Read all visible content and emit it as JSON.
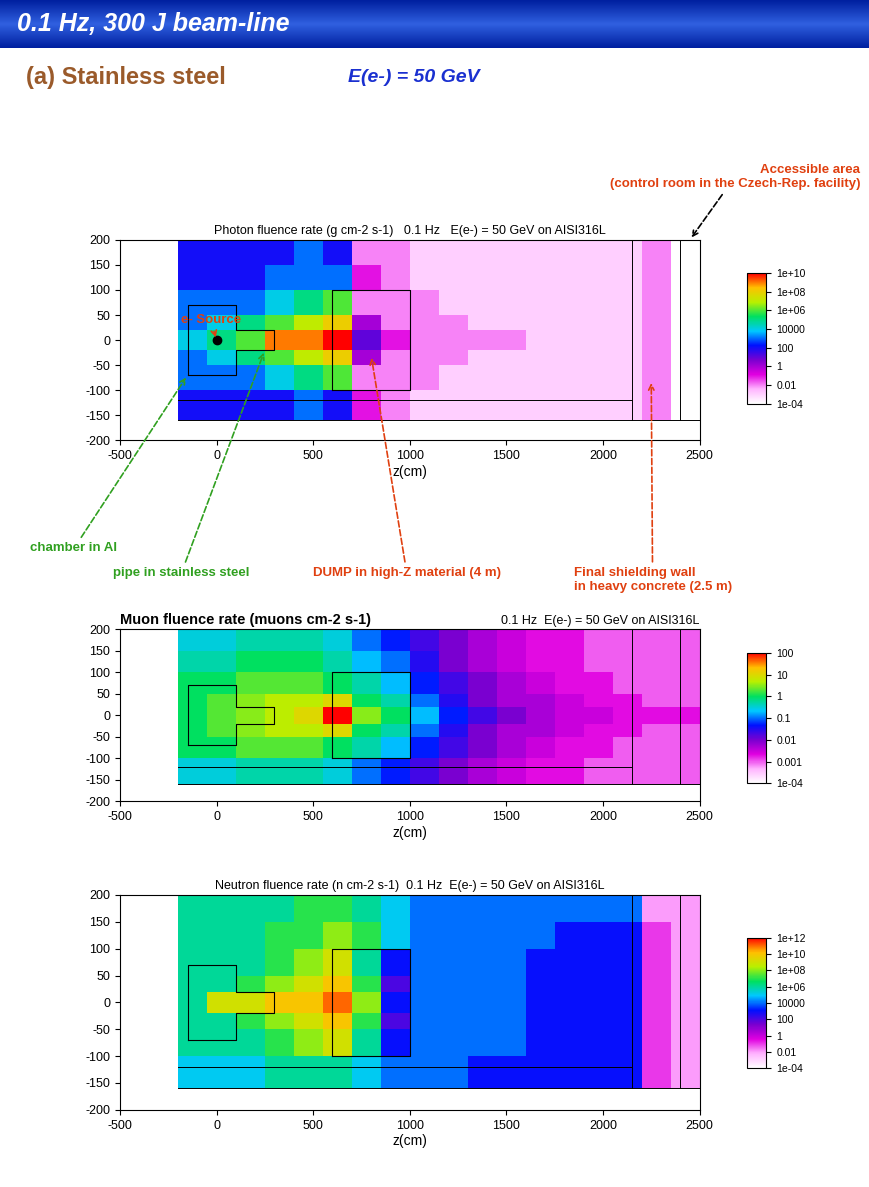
{
  "slide": {
    "title": "0.1 Hz, 300 J beam-line",
    "section": "(a) Stainless steel",
    "energy": "E(e-) = 50 GeV"
  },
  "chart_data": [
    {
      "type": "heatmap",
      "title": "Photon fluence rate (g cm-2 s-1)   0.1 Hz   E(e-) = 50 GeV on AISI316L",
      "xlabel": "z(cm)",
      "xlim": [
        -500,
        2500
      ],
      "ylim": [
        -200,
        200
      ],
      "xticks": [
        -500,
        0,
        500,
        1000,
        1500,
        2000,
        2500
      ],
      "yticks": [
        -200,
        -150,
        -100,
        -50,
        0,
        50,
        100,
        150,
        200
      ],
      "annotations": [
        "e- Source",
        "chamber in Al",
        "pipe in stainless steel",
        "DUMP in high-Z material (4 m)",
        "Final shielding wall\nin heavy concrete (2.5 m)",
        "Accessible area\n(control room in the Czech-Rep. facility)"
      ],
      "x_edges": [
        -200,
        -50,
        100,
        250,
        400,
        550,
        700,
        850,
        1000,
        1150,
        1300,
        1450,
        1600,
        1750,
        1900,
        2050,
        2200,
        2350,
        2500
      ],
      "y_edges": [
        -160,
        -100,
        -50,
        -20,
        20,
        50,
        100,
        150,
        200
      ],
      "cells": [
        [
          100,
          100,
          100,
          100,
          1000,
          100,
          0.1,
          0.01,
          0.001,
          0.001,
          0.001,
          0.001,
          0.001,
          0.001,
          0.001,
          0.001,
          0.01,
          0.0001
        ],
        [
          1000,
          1000,
          1000,
          10000.0,
          100000.0,
          1000000.0,
          0.01,
          0.01,
          0.01,
          0.001,
          0.001,
          0.001,
          0.001,
          0.001,
          0.001,
          0.001,
          0.01,
          0.0001
        ],
        [
          1000,
          10000.0,
          100000.0,
          1000000.0,
          10000000.0,
          100000000.0,
          1,
          0.01,
          0.01,
          0.01,
          0.001,
          0.001,
          0.001,
          0.001,
          0.001,
          0.001,
          0.01,
          0.0001
        ],
        [
          10000.0,
          100000.0,
          1000000.0,
          1000000000.0,
          1000000000.0,
          10000000000.0,
          10,
          0.1,
          0.01,
          0.01,
          0.01,
          0.01,
          0.001,
          0.001,
          0.001,
          0.001,
          0.01,
          0.0001
        ],
        [
          1000,
          10000.0,
          100000.0,
          1000000.0,
          10000000.0,
          100000000.0,
          1,
          0.01,
          0.01,
          0.01,
          0.001,
          0.001,
          0.001,
          0.001,
          0.001,
          0.001,
          0.01,
          0.0001
        ],
        [
          1000,
          1000,
          1000,
          10000.0,
          100000.0,
          1000000.0,
          0.01,
          0.01,
          0.01,
          0.001,
          0.001,
          0.001,
          0.001,
          0.001,
          0.001,
          0.001,
          0.01,
          0.0001
        ],
        [
          100,
          100,
          100,
          1000,
          1000,
          1000,
          0.1,
          0.01,
          0.001,
          0.001,
          0.001,
          0.001,
          0.001,
          0.001,
          0.001,
          0.001,
          0.01,
          0.0001
        ],
        [
          100,
          100,
          100,
          100,
          1000,
          100,
          0.01,
          0.01,
          0.001,
          0.001,
          0.001,
          0.001,
          0.001,
          0.001,
          0.001,
          0.001,
          0.01,
          0.0001
        ]
      ],
      "colorbar_range": [
        0.0001,
        10000000000.0
      ],
      "colorbar_ticks": [
        {
          "value": 10000000000.0,
          "label": "1e+10"
        },
        {
          "value": 100000000.0,
          "label": "1e+08"
        },
        {
          "value": 1000000.0,
          "label": "1e+06"
        },
        10000,
        100,
        1,
        0.01,
        {
          "value": 0.0001,
          "label": "1e-04"
        }
      ]
    },
    {
      "type": "heatmap",
      "title": "Muon fluence rate (muons cm-2 s-1)",
      "subtitle": "0.1 Hz  E(e-) = 50 GeV on AISI316L",
      "xlabel": "z(cm)",
      "xlim": [
        -500,
        2500
      ],
      "ylim": [
        -200,
        200
      ],
      "xticks": [
        -500,
        0,
        500,
        1000,
        1500,
        2000,
        2500
      ],
      "yticks": [
        -200,
        -150,
        -100,
        -50,
        0,
        50,
        100,
        150,
        200
      ],
      "x_edges": [
        -200,
        -50,
        100,
        250,
        400,
        550,
        700,
        850,
        1000,
        1150,
        1300,
        1450,
        1600,
        1750,
        1900,
        2050,
        2200,
        2350,
        2500
      ],
      "y_edges": [
        -160,
        -100,
        -50,
        -20,
        20,
        50,
        100,
        150,
        200
      ],
      "cells": [
        [
          0.3,
          0.3,
          0.5,
          0.5,
          0.5,
          0.3,
          0.1,
          0.05,
          0.02,
          0.01,
          0.005,
          0.003,
          0.002,
          0.002,
          0.001,
          0.001,
          0.001,
          0.001
        ],
        [
          1,
          1,
          2,
          2,
          2,
          1,
          0.5,
          0.2,
          0.05,
          0.02,
          0.01,
          0.005,
          0.003,
          0.002,
          0.002,
          0.001,
          0.001,
          0.001
        ],
        [
          1,
          2,
          3,
          5,
          5,
          10,
          1,
          0.5,
          0.1,
          0.03,
          0.01,
          0.005,
          0.005,
          0.003,
          0.002,
          0.002,
          0.001,
          0.001
        ],
        [
          1,
          2,
          3,
          5,
          10,
          100,
          3,
          1,
          0.2,
          0.05,
          0.02,
          0.01,
          0.005,
          0.003,
          0.003,
          0.002,
          0.002,
          0.002
        ],
        [
          1,
          2,
          3,
          5,
          5,
          10,
          1,
          0.5,
          0.1,
          0.03,
          0.01,
          0.005,
          0.005,
          0.003,
          0.002,
          0.002,
          0.001,
          0.001
        ],
        [
          1,
          1,
          2,
          2,
          2,
          1,
          0.5,
          0.2,
          0.05,
          0.02,
          0.01,
          0.005,
          0.003,
          0.002,
          0.002,
          0.001,
          0.001,
          0.001
        ],
        [
          0.5,
          0.5,
          1,
          1,
          1,
          0.5,
          0.2,
          0.1,
          0.03,
          0.01,
          0.005,
          0.003,
          0.002,
          0.002,
          0.001,
          0.001,
          0.001,
          0.001
        ],
        [
          0.3,
          0.3,
          0.5,
          0.5,
          0.5,
          0.3,
          0.1,
          0.05,
          0.02,
          0.01,
          0.005,
          0.003,
          0.002,
          0.002,
          0.001,
          0.001,
          0.001,
          0.001
        ]
      ],
      "colorbar_range": [
        0.0001,
        100
      ],
      "colorbar_ticks": [
        100,
        10,
        1,
        0.1,
        0.01,
        0.001,
        {
          "value": 0.0001,
          "label": "1e-04"
        }
      ]
    },
    {
      "type": "heatmap",
      "title": "Neutron fluence rate (n cm-2 s-1)  0.1 Hz  E(e-) = 50 GeV on AISI316L",
      "xlabel": "z(cm)",
      "xlim": [
        -500,
        2500
      ],
      "ylim": [
        -200,
        200
      ],
      "xticks": [
        -500,
        0,
        500,
        1000,
        1500,
        2000,
        2500
      ],
      "yticks": [
        -200,
        -150,
        -100,
        -50,
        0,
        50,
        100,
        150,
        200
      ],
      "x_edges": [
        -200,
        -50,
        100,
        250,
        400,
        550,
        700,
        850,
        1000,
        1150,
        1300,
        1450,
        1600,
        1750,
        1900,
        2050,
        2200,
        2350,
        2500
      ],
      "y_edges": [
        -160,
        -100,
        -50,
        -20,
        20,
        50,
        100,
        150,
        200
      ],
      "cells": [
        [
          100000.0,
          100000.0,
          100000.0,
          1000000.0,
          1000000.0,
          1000000.0,
          100000.0,
          10000.0,
          10000.0,
          10000.0,
          1000.0,
          1000.0,
          1000.0,
          1000.0,
          1000.0,
          1000.0,
          0.1,
          0.01
        ],
        [
          1000000.0,
          1000000.0,
          1000000.0,
          10000000.0,
          100000000.0,
          1000000000.0,
          1000000.0,
          1000.0,
          10000.0,
          10000.0,
          10000.0,
          10000.0,
          1000.0,
          1000.0,
          1000.0,
          1000.0,
          0.1,
          0.01
        ],
        [
          1000000.0,
          1000000.0,
          10000000.0,
          100000000.0,
          1000000000.0,
          10000000000.0,
          10000000.0,
          100,
          10000.0,
          10000.0,
          10000.0,
          10000.0,
          1000.0,
          1000.0,
          1000.0,
          1000.0,
          0.1,
          0.01
        ],
        [
          1000000.0,
          1000000000.0,
          1000000000.0,
          10000000000.0,
          10000000000.0,
          100000000000.0,
          100000000.0,
          1000.0,
          10000.0,
          10000.0,
          10000.0,
          10000.0,
          1000.0,
          1000.0,
          1000.0,
          1000.0,
          0.1,
          0.01
        ],
        [
          1000000.0,
          1000000.0,
          10000000.0,
          100000000.0,
          1000000000.0,
          10000000000.0,
          10000000.0,
          100,
          10000.0,
          10000.0,
          10000.0,
          10000.0,
          1000.0,
          1000.0,
          1000.0,
          1000.0,
          0.1,
          0.01
        ],
        [
          1000000.0,
          1000000.0,
          1000000.0,
          10000000.0,
          100000000.0,
          1000000000.0,
          1000000.0,
          1000.0,
          10000.0,
          10000.0,
          10000.0,
          10000.0,
          1000.0,
          1000.0,
          1000.0,
          1000.0,
          0.1,
          0.01
        ],
        [
          1000000.0,
          1000000.0,
          1000000.0,
          10000000.0,
          10000000.0,
          100000000.0,
          10000000.0,
          100000.0,
          10000.0,
          10000.0,
          10000.0,
          10000.0,
          10000.0,
          1000.0,
          1000.0,
          1000.0,
          0.1,
          0.01
        ],
        [
          1000000.0,
          1000000.0,
          1000000.0,
          1000000.0,
          10000000.0,
          10000000.0,
          1000000.0,
          100000.0,
          10000.0,
          10000.0,
          10000.0,
          10000.0,
          10000.0,
          10000.0,
          10000.0,
          10000.0,
          0.01,
          0.01
        ]
      ],
      "colorbar_range": [
        0.0001,
        1000000000000.0
      ],
      "colorbar_ticks": [
        {
          "value": 1000000000000.0,
          "label": "1e+12"
        },
        {
          "value": 10000000000.0,
          "label": "1e+10"
        },
        {
          "value": 100000000.0,
          "label": "1e+08"
        },
        {
          "value": 1000000.0,
          "label": "1e+06"
        },
        10000,
        100,
        1,
        0.01,
        {
          "value": 0.0001,
          "label": "1e-04"
        }
      ]
    }
  ]
}
